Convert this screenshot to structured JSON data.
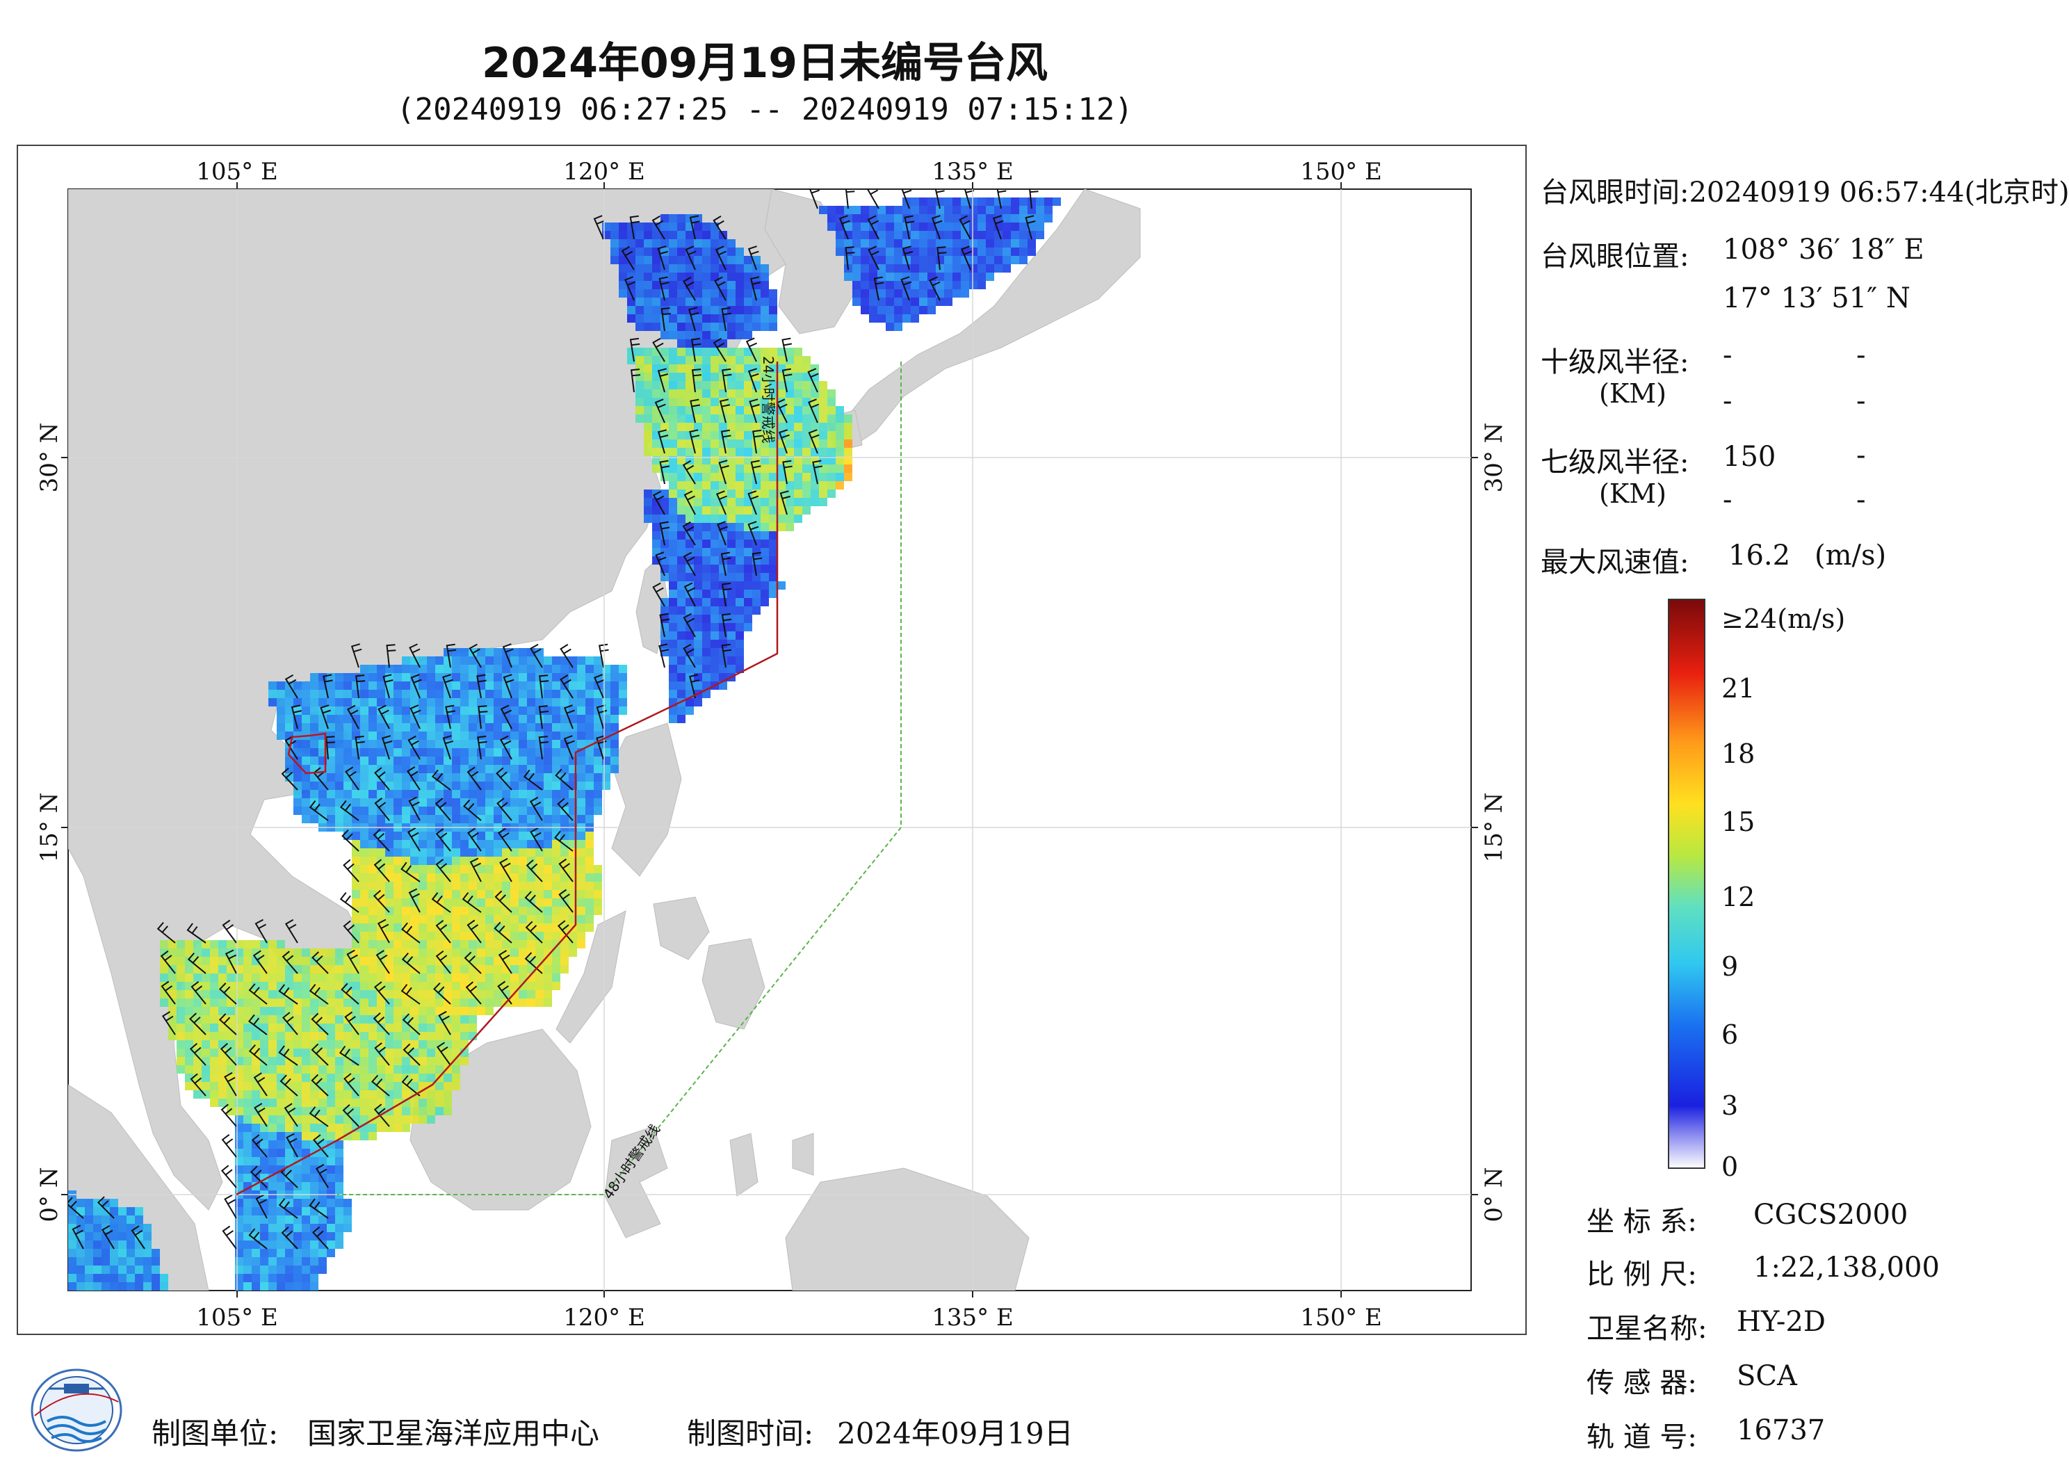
{
  "title": "2024年09月19日未编号台风",
  "subtitle": "(20240919 06:27:25 -- 20240919 07:15:12)",
  "map": {
    "lon_ticks": [
      "105° E",
      "120° E",
      "135° E",
      "150° E"
    ],
    "lat_ticks": [
      "30° N",
      "15° N",
      "0° N"
    ],
    "warning_24h": "24小时警戒线",
    "warning_48h": "48小时警戒线",
    "colors": {
      "land": "#d3d3d3",
      "sea": "#ffffff",
      "line24": "#b0181e",
      "line48": "#5ab54b",
      "barb": "#111111"
    }
  },
  "info": {
    "eye_time_label": "台风眼时间:",
    "eye_time_value": "20240919 06:57:44(北京时)",
    "eye_pos_label": "台风眼位置:",
    "eye_lon": "108° 36′ 18″ E",
    "eye_lat": "17° 13′ 51″ N",
    "r10_label": "十级风半径:",
    "r10_km": "(KM)",
    "r10_values": [
      "-",
      "-",
      "-",
      "-"
    ],
    "r7_label": "七级风半径:",
    "r7_km": "(KM)",
    "r7_values": [
      "150",
      "-",
      "-",
      "-"
    ],
    "max_wind_label": "最大风速值:",
    "max_wind_value": "16.2",
    "max_wind_unit": "(m/s)"
  },
  "legend": {
    "labels": [
      "≥24(m/s)",
      "21",
      "18",
      "15",
      "12",
      "9",
      "6",
      "3",
      "0"
    ],
    "colors": [
      "#7a0a0a",
      "#e01010",
      "#ff7a1a",
      "#ffd21a",
      "#b8e840",
      "#40e0d0",
      "#2aa0f0",
      "#1a30e8",
      "#ffffff"
    ]
  },
  "meta": {
    "crs_label": "坐 标 系:",
    "crs_value": "CGCS2000",
    "scale_label": "比 例 尺:",
    "scale_value": "1:22,138,000",
    "sat_label": "卫星名称:",
    "sat_value": "HY-2D",
    "sensor_label": "传 感 器:",
    "sensor_value": "SCA",
    "orbit_label": "轨 道 号:",
    "orbit_value": "16737"
  },
  "footer": {
    "org_label": "制图单位:",
    "org_value": "国家卫星海洋应用中心",
    "date_label": "制图时间:",
    "date_value": "2024年09月19日"
  },
  "logo_text": "NSOAS"
}
